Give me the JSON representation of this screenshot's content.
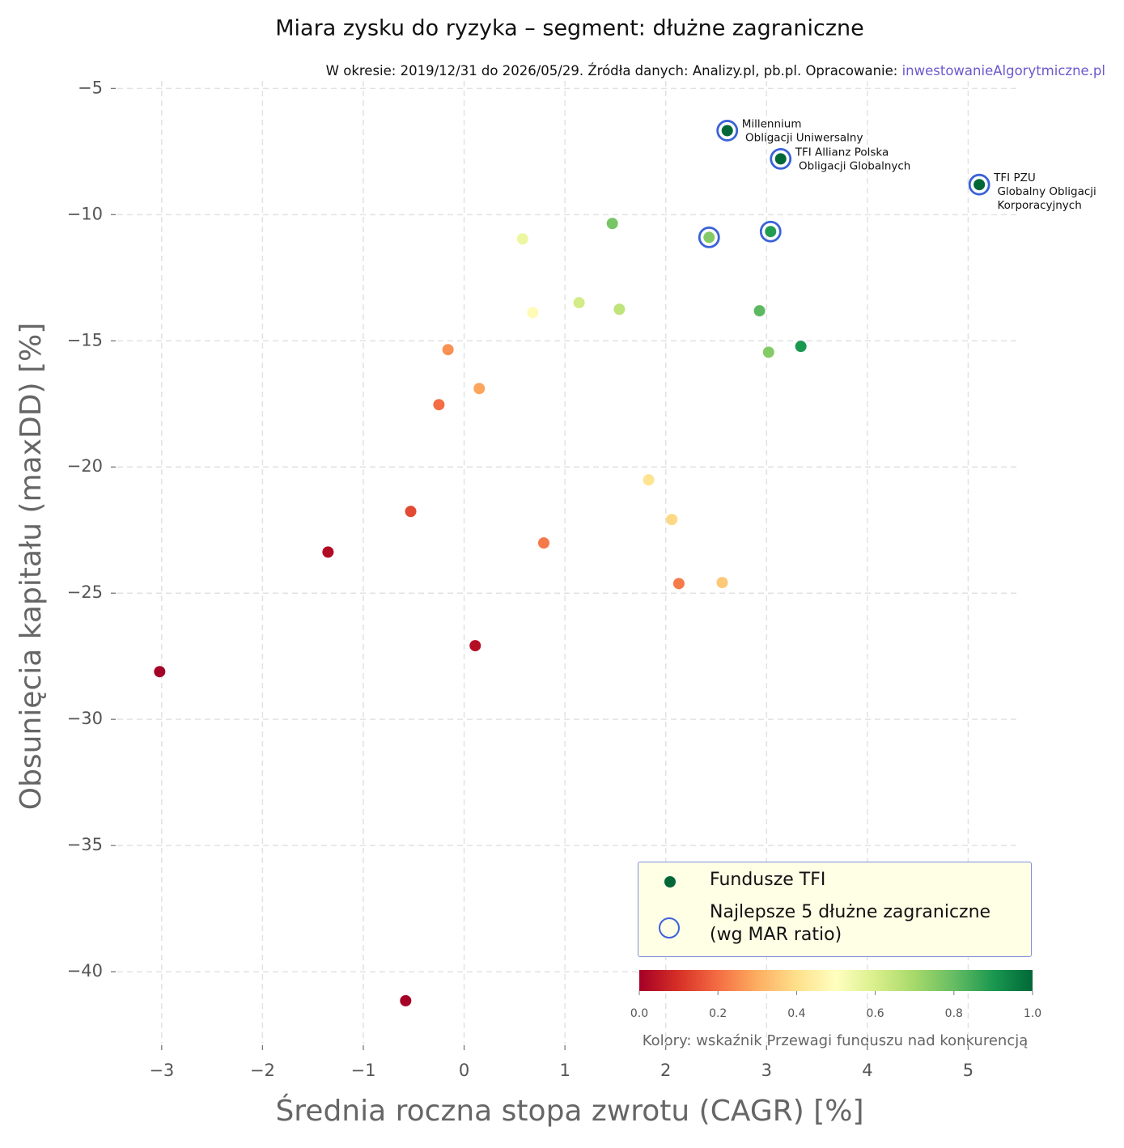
{
  "chart_data": {
    "type": "scatter",
    "title": "Miara zysku do ryzyka – segment: dłużne zagraniczne",
    "subtitle": "W okresie: 2019/12/31 do 2026/05/29. Źródła danych: Analizy.pl, pb.pl. Opracowanie: ",
    "subtitle_link": "inwestowanieAlgorytmiczne.pl",
    "x_label": "Średnia roczna stopa zwrotu (CAGR) [%]",
    "y_label": "Obsunięcia kapitału (maxDD) [%]",
    "xlim": [
      -3.44,
      5.51
    ],
    "ylim": [
      -42.85,
      -4.7
    ],
    "xticks": [
      {
        "value": -3,
        "label": "−3"
      },
      {
        "value": -2,
        "label": "−2"
      },
      {
        "value": -1,
        "label": "−1"
      },
      0,
      1,
      2,
      3,
      4,
      5
    ],
    "yticks": [
      {
        "value": -5,
        "label": "−5"
      },
      {
        "value": -10,
        "label": "−10"
      },
      {
        "value": -15,
        "label": "−15"
      },
      {
        "value": -20,
        "label": "−20"
      },
      {
        "value": -25,
        "label": "−25"
      },
      {
        "value": -30,
        "label": "−30"
      },
      {
        "value": -35,
        "label": "−35"
      },
      {
        "value": -40,
        "label": "−40"
      }
    ],
    "grid": true,
    "legend": "lower right",
    "series": [
      {
        "name": "Fundusze TFI",
        "color": "#006837",
        "x": [
          -3.02,
          -0.58,
          -1.35,
          -0.53,
          0.11,
          -0.25,
          -0.16,
          0.15,
          0.79,
          2.13,
          2.56,
          2.06,
          1.83,
          0.68,
          0.58,
          1.14,
          1.54,
          1.47,
          2.43,
          3.02,
          2.93,
          3.34,
          3.04,
          2.61,
          3.14,
          5.11
        ],
        "values": [
          -28.11,
          -41.15,
          -23.37,
          -21.76,
          -27.08,
          -17.53,
          -15.35,
          -16.89,
          -23.01,
          -24.62,
          -24.58,
          -22.08,
          -20.51,
          -13.88,
          -10.96,
          -13.49,
          -13.75,
          -10.35,
          -10.9,
          -15.45,
          -13.81,
          -15.22,
          -10.67,
          -6.67,
          -7.79,
          -8.81
        ],
        "colors": [
          "#a50026",
          "#a50026",
          "#b10b26",
          "#e34a33",
          "#b50f26",
          "#f46d43",
          "#f99153",
          "#fca55d",
          "#f67a49",
          "#f57b49",
          "#fdc877",
          "#fed884",
          "#fee491",
          "#fffab6",
          "#ecf7a0",
          "#d3ec87",
          "#bfe47a",
          "#78c565",
          "#84ca66",
          "#84ca66",
          "#5db961",
          "#1a9850",
          "#229c52",
          "#006837",
          "#006837",
          "#006837"
        ],
        "labels": [
          null,
          null,
          null,
          null,
          null,
          null,
          null,
          null,
          null,
          null,
          null,
          null,
          null,
          null,
          null,
          null,
          null,
          null,
          null,
          null,
          null,
          null,
          null,
          [
            "Millennium",
            " Obligacji Uniwersalny"
          ],
          [
            "TFI Allianz Polska",
            " Obligacji Globalnych"
          ],
          [
            "TFI PZU",
            " Globalny Obligacji",
            "  Korporacyjnych"
          ]
        ]
      },
      {
        "name": "Najlepsze 5 dłużne zagraniczne\n(wg MAR ratio)",
        "color": "#3a62d8",
        "x": [
          2.43,
          3.04,
          2.61,
          3.14,
          5.11
        ],
        "values": [
          -10.9,
          -10.67,
          -6.67,
          -7.79,
          -8.81
        ]
      }
    ],
    "colorbar": {
      "label": "Kolory: wskaźnik Przewagi funduszu nad konkurencją",
      "lim": [
        0,
        1
      ],
      "ticks": [
        {
          "value": 0,
          "label": "0.0"
        },
        0.2,
        0.4,
        0.6,
        0.8,
        {
          "value": 1,
          "label": "1.0"
        }
      ],
      "colormap": [
        "#a50026",
        "#d73027",
        "#f46d43",
        "#fdae61",
        "#fee08b",
        "#ffffbf",
        "#d9ef8b",
        "#a6d96a",
        "#66bd63",
        "#1a9850",
        "#006837"
      ]
    }
  }
}
